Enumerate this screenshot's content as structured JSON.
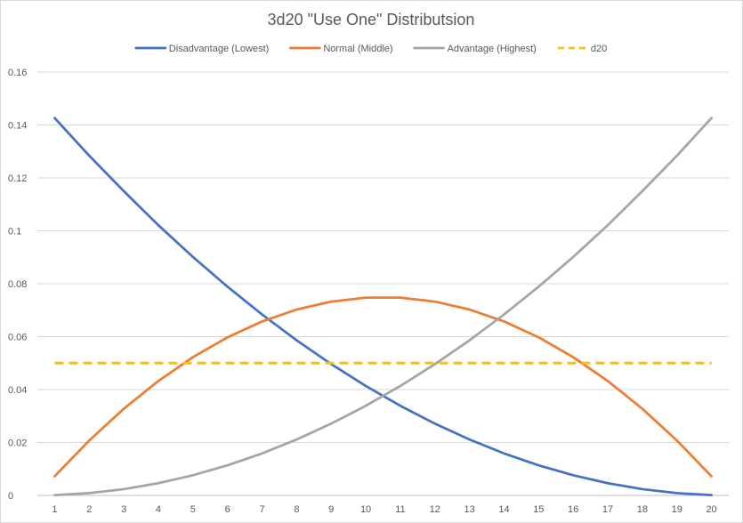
{
  "chart_data": {
    "type": "line",
    "title": "3d20 \"Use One\" Distributsion",
    "xlabel": "",
    "ylabel": "",
    "x": [
      1,
      2,
      3,
      4,
      5,
      6,
      7,
      8,
      9,
      10,
      11,
      12,
      13,
      14,
      15,
      16,
      17,
      18,
      19,
      20
    ],
    "ylim": [
      0,
      0.16
    ],
    "yticks": [
      0,
      0.02,
      0.04,
      0.06,
      0.08,
      0.1,
      0.12,
      0.14,
      0.16
    ],
    "ytick_labels": [
      "0",
      "0.02",
      "0.04",
      "0.06",
      "0.08",
      "0.1",
      "0.12",
      "0.14",
      "0.16"
    ],
    "grid": true,
    "legend_position": "top",
    "series": [
      {
        "name": "Disadvantage (Lowest)",
        "color": "#4472c4",
        "dash": "solid",
        "values": [
          0.142625,
          0.128375,
          0.115,
          0.102125,
          0.090125,
          0.078875,
          0.068375,
          0.058625,
          0.049625,
          0.041375,
          0.033875,
          0.027125,
          0.021125,
          0.015875,
          0.011375,
          0.007625,
          0.004625,
          0.002375,
          0.000875,
          0.000125
        ]
      },
      {
        "name": "Normal (Middle)",
        "color": "#ed7d31",
        "dash": "solid",
        "values": [
          0.00725,
          0.02075,
          0.03275,
          0.04325,
          0.05225,
          0.05975,
          0.06575,
          0.07025,
          0.07325,
          0.07475,
          0.07475,
          0.07325,
          0.07025,
          0.06575,
          0.05975,
          0.05225,
          0.04325,
          0.03275,
          0.02075,
          0.00725
        ]
      },
      {
        "name": "Advantage (Highest)",
        "color": "#a5a5a5",
        "dash": "solid",
        "values": [
          0.000125,
          0.000875,
          0.002375,
          0.004625,
          0.007625,
          0.011375,
          0.015875,
          0.021125,
          0.027125,
          0.033875,
          0.041375,
          0.049625,
          0.058625,
          0.068375,
          0.078875,
          0.090125,
          0.102125,
          0.115,
          0.128375,
          0.142625
        ]
      },
      {
        "name": "d20",
        "color": "#ffc000",
        "dash": "dashed",
        "values": [
          0.05,
          0.05,
          0.05,
          0.05,
          0.05,
          0.05,
          0.05,
          0.05,
          0.05,
          0.05,
          0.05,
          0.05,
          0.05,
          0.05,
          0.05,
          0.05,
          0.05,
          0.05,
          0.05,
          0.05
        ]
      }
    ]
  }
}
